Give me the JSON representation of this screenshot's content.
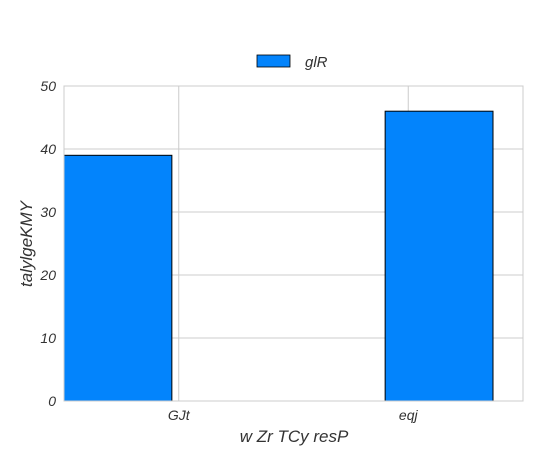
{
  "chart_data": {
    "type": "bar",
    "title": "",
    "xlabel": "w Zr TCy  resP",
    "ylabel": "talylgeKMY",
    "categories": [
      "GJt",
      "eqj"
    ],
    "series": [
      {
        "name": "glR",
        "values": [
          39,
          46
        ],
        "color": "#0384fc"
      }
    ],
    "ylim": [
      0,
      50
    ],
    "yticks": [
      "0",
      "10",
      "20",
      "30",
      "40",
      "50"
    ],
    "grid": true,
    "legend": "top-center"
  }
}
